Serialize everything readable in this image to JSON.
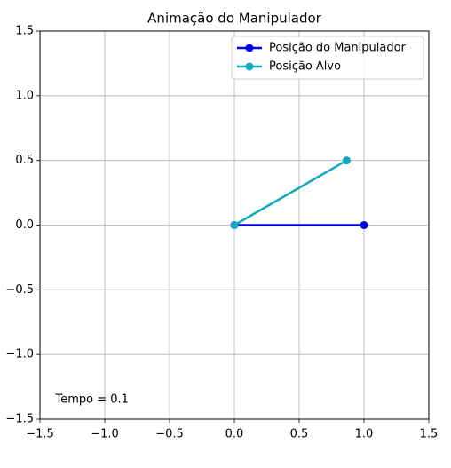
{
  "chart_data": {
    "type": "line",
    "title": "Animação do Manipulador",
    "series": [
      {
        "name": "Posição do Manipulador",
        "color": "#0000e6",
        "x": [
          0,
          1
        ],
        "values": [
          0,
          0
        ]
      },
      {
        "name": "Posição Alvo",
        "color": "#12a8bf",
        "x": [
          0,
          0.866
        ],
        "values": [
          0,
          0.5
        ]
      }
    ],
    "xlim": [
      -1.5,
      1.5
    ],
    "ylim": [
      -1.5,
      1.5
    ],
    "xticks": [
      {
        "value": -1.5,
        "label": "−1.5"
      },
      {
        "value": -1,
        "label": "−1.0"
      },
      {
        "value": -0.5,
        "label": "−0.5"
      },
      {
        "value": 0,
        "label": "0.0"
      },
      0.5,
      {
        "value": 1,
        "label": "1.0"
      },
      1.5
    ],
    "yticks": [
      {
        "value": -1.5,
        "label": "−1.5"
      },
      {
        "value": -1,
        "label": "−1.0"
      },
      {
        "value": -0.5,
        "label": "−0.5"
      },
      {
        "value": 0,
        "label": "0.0"
      },
      0.5,
      {
        "value": 1,
        "label": "1.0"
      },
      1.5
    ],
    "grid": true,
    "legend": "upper right",
    "annotations": [
      {
        "text": "Tempo = 0.1",
        "x": -1.38,
        "y": -1.35
      }
    ]
  }
}
